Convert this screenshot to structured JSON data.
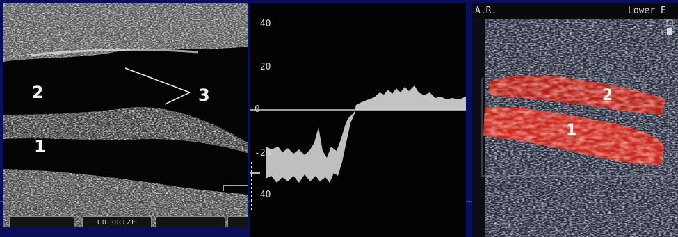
{
  "panel_left": {
    "labels": {
      "vessel_2": "2",
      "vessel_1": "1",
      "wall_3": "3"
    },
    "buttons": [
      "COLORIZE"
    ]
  },
  "panel_middle": {
    "scale_ticks": [
      "-40",
      "-20",
      "0",
      "-20",
      "-40"
    ]
  },
  "panel_right": {
    "top_left_text": "A.R.",
    "top_right_text": "Lower E",
    "labels": {
      "vessel_2": "2",
      "vessel_1": "1"
    }
  },
  "colors": {
    "background": "#0a0f5c",
    "doppler_red": "#c8281e"
  }
}
